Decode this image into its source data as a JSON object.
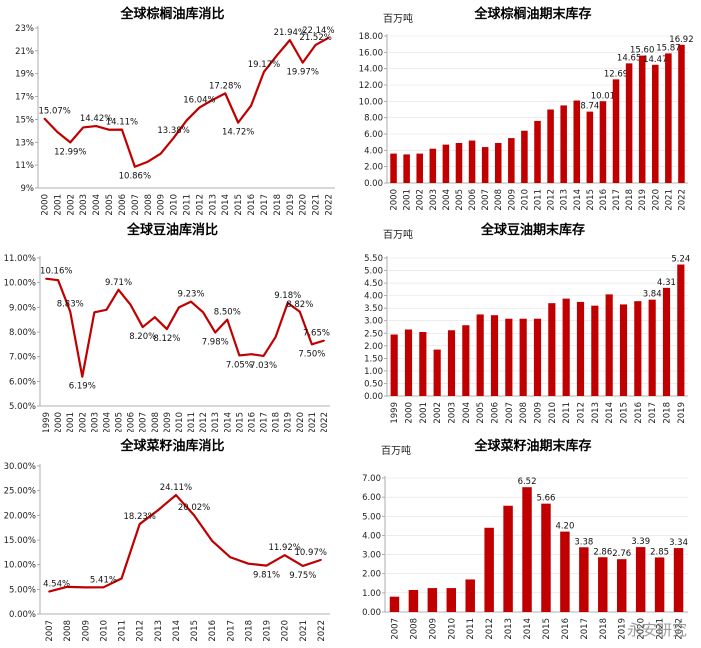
{
  "watermark": "永安研究",
  "chart_data": [
    {
      "type": "line",
      "title": "全球棕榈油库消比",
      "unit": "",
      "categories": [
        "2000",
        "2001",
        "2002",
        "2003",
        "2004",
        "2005",
        "2006",
        "2007",
        "2008",
        "2009",
        "2010",
        "2011",
        "2012",
        "2013",
        "2014",
        "2015",
        "2016",
        "2017",
        "2018",
        "2019",
        "2020",
        "2021",
        "2022"
      ],
      "values": [
        15.07,
        13.9,
        12.99,
        14.3,
        14.42,
        14.1,
        14.11,
        10.86,
        11.3,
        12.0,
        13.38,
        14.9,
        16.04,
        16.7,
        17.28,
        14.72,
        16.2,
        19.17,
        20.6,
        21.94,
        19.97,
        21.52,
        22.14
      ],
      "labels": {
        "0": "15.07%",
        "2": "12.99%",
        "4": "14.42%",
        "6": "14.11%",
        "7": "10.86%",
        "10": "13.38%",
        "12": "16.04%",
        "14": "17.28%",
        "15": "14.72%",
        "17": "19.17%",
        "19": "21.94%",
        "20": "19.97%",
        "21": "21.52%",
        "22": "22.14%"
      },
      "yticks": [
        9,
        11,
        13,
        15,
        17,
        19,
        21,
        23
      ],
      "ytick_labels": [
        "9%",
        "11%",
        "13%",
        "15%",
        "17%",
        "19%",
        "21%",
        "23%"
      ],
      "ylim": [
        9,
        23
      ],
      "color": "#C00000"
    },
    {
      "type": "bar",
      "title": "全球棕榈油期末库存",
      "unit": "百万吨",
      "categories": [
        "2000",
        "2001",
        "2002",
        "2003",
        "2004",
        "2005",
        "2006",
        "2007",
        "2008",
        "2009",
        "2010",
        "2011",
        "2012",
        "2013",
        "2014",
        "2015",
        "2016",
        "2017",
        "2018",
        "2019",
        "2020",
        "2021",
        "2022"
      ],
      "values": [
        3.6,
        3.5,
        3.6,
        4.2,
        4.7,
        4.9,
        5.2,
        4.4,
        4.9,
        5.5,
        6.4,
        7.6,
        9.0,
        9.5,
        10.1,
        8.74,
        10.01,
        12.69,
        14.65,
        15.6,
        14.47,
        15.87,
        16.92
      ],
      "labels": {
        "15": "8.74",
        "16": "10.01",
        "17": "12.69",
        "18": "14.65",
        "19": "15.60",
        "20": "14.47",
        "21": "15.87",
        "22": "16.92"
      },
      "yticks": [
        0,
        2,
        4,
        6,
        8,
        10,
        12,
        14,
        16,
        18
      ],
      "ytick_labels": [
        "0.00",
        "2.00",
        "4.00",
        "6.00",
        "8.00",
        "10.00",
        "12.00",
        "14.00",
        "16.00",
        "18.00"
      ],
      "ylim": [
        0,
        18
      ],
      "color": "#C00000"
    },
    {
      "type": "line",
      "title": "全球豆油库消比",
      "unit": "",
      "categories": [
        "1999",
        "2000",
        "2001",
        "2002",
        "2003",
        "2004",
        "2005",
        "2006",
        "2007",
        "2008",
        "2009",
        "2010",
        "2011",
        "2012",
        "2013",
        "2014",
        "2015",
        "2016",
        "2017",
        "2018",
        "2019",
        "2020",
        "2021",
        "2022"
      ],
      "values": [
        10.16,
        10.1,
        8.83,
        6.19,
        8.8,
        8.9,
        9.71,
        9.1,
        8.2,
        8.6,
        8.12,
        9.0,
        9.23,
        8.8,
        7.98,
        8.5,
        7.05,
        7.1,
        7.03,
        7.8,
        9.18,
        8.82,
        7.5,
        7.65
      ],
      "labels": {
        "0": "10.16%",
        "2": "8.83%",
        "3": "6.19%",
        "6": "9.71%",
        "8": "8.20%",
        "10": "8.12%",
        "12": "9.23%",
        "14": "7.98%",
        "15": "8.50%",
        "16": "7.05%",
        "18": "7.03%",
        "20": "9.18%",
        "21": "8.82%",
        "22": "7.50%",
        "23": "7.65%"
      },
      "yticks": [
        5,
        6,
        7,
        8,
        9,
        10,
        11
      ],
      "ytick_labels": [
        "5.00%",
        "6.00%",
        "7.00%",
        "8.00%",
        "9.00%",
        "10.00%",
        "11.00%"
      ],
      "ylim": [
        5,
        11
      ],
      "color": "#C00000"
    },
    {
      "type": "bar",
      "title": "全球豆油期末库存",
      "unit": "百万吨",
      "categories": [
        "1999",
        "2000",
        "2001",
        "2002",
        "2003",
        "2004",
        "2005",
        "2006",
        "2007",
        "2008",
        "2009",
        "2010",
        "2011",
        "2012",
        "2013",
        "2014",
        "2015",
        "2016",
        "2017",
        "2018",
        "2019"
      ],
      "values": [
        2.45,
        2.65,
        2.55,
        1.85,
        2.62,
        2.82,
        3.25,
        3.22,
        3.08,
        3.08,
        3.08,
        3.7,
        3.88,
        3.75,
        3.6,
        4.05,
        3.65,
        3.78,
        3.84,
        4.31,
        5.24
      ],
      "labels": {
        "18": "3.84",
        "19": "4.31",
        "20": "5.24"
      },
      "yticks": [
        0,
        0.5,
        1,
        1.5,
        2,
        2.5,
        3,
        3.5,
        4,
        4.5,
        5,
        5.5
      ],
      "ytick_labels": [
        "0.00",
        "0.50",
        "1.00",
        "1.50",
        "2.00",
        "2.50",
        "3.00",
        "3.50",
        "4.00",
        "4.50",
        "5.00",
        "5.50"
      ],
      "ylim": [
        0,
        5.5
      ],
      "color": "#C00000"
    },
    {
      "type": "line",
      "title": "全球菜籽油库消比",
      "unit": "",
      "categories": [
        "2007",
        "2008",
        "2009",
        "2010",
        "2011",
        "2012",
        "2013",
        "2014",
        "2015",
        "2016",
        "2017",
        "2018",
        "2019",
        "2020",
        "2021",
        "2022"
      ],
      "values": [
        4.54,
        5.5,
        5.4,
        5.41,
        7.2,
        18.23,
        21.0,
        24.11,
        20.02,
        14.8,
        11.5,
        10.2,
        9.81,
        11.92,
        9.75,
        10.97
      ],
      "labels": {
        "0": "4.54%",
        "3": "5.41%",
        "5": "18.23%",
        "7": "24.11%",
        "8": "20.02%",
        "12": "9.81%",
        "13": "11.92%",
        "14": "9.75%",
        "15": "10.97%"
      },
      "yticks": [
        0,
        5,
        10,
        15,
        20,
        25,
        30
      ],
      "ytick_labels": [
        "0.00%",
        "5.00%",
        "10.00%",
        "15.00%",
        "20.00%",
        "25.00%",
        "30.00%"
      ],
      "ylim": [
        0,
        30
      ],
      "color": "#C00000"
    },
    {
      "type": "bar",
      "title": "全球菜籽油期末库存",
      "unit": "百万吨",
      "categories": [
        "2007",
        "2008",
        "2009",
        "2010",
        "2011",
        "2012",
        "2013",
        "2014",
        "2015",
        "2016",
        "2017",
        "2018",
        "2019",
        "2020",
        "2021",
        "2022"
      ],
      "values": [
        0.8,
        1.15,
        1.25,
        1.25,
        1.7,
        4.4,
        5.55,
        6.52,
        5.66,
        4.2,
        3.38,
        2.86,
        2.76,
        3.39,
        2.85,
        3.34
      ],
      "labels": {
        "7": "6.52",
        "8": "5.66",
        "9": "4.20",
        "10": "3.38",
        "11": "2.86",
        "12": "2.76",
        "13": "3.39",
        "14": "2.85",
        "15": "3.34"
      },
      "yticks": [
        0,
        1,
        2,
        3,
        4,
        5,
        6,
        7
      ],
      "ytick_labels": [
        "0.00",
        "1.00",
        "2.00",
        "3.00",
        "4.00",
        "5.00",
        "6.00",
        "7.00"
      ],
      "ylim": [
        0,
        7
      ],
      "color": "#C00000"
    }
  ]
}
